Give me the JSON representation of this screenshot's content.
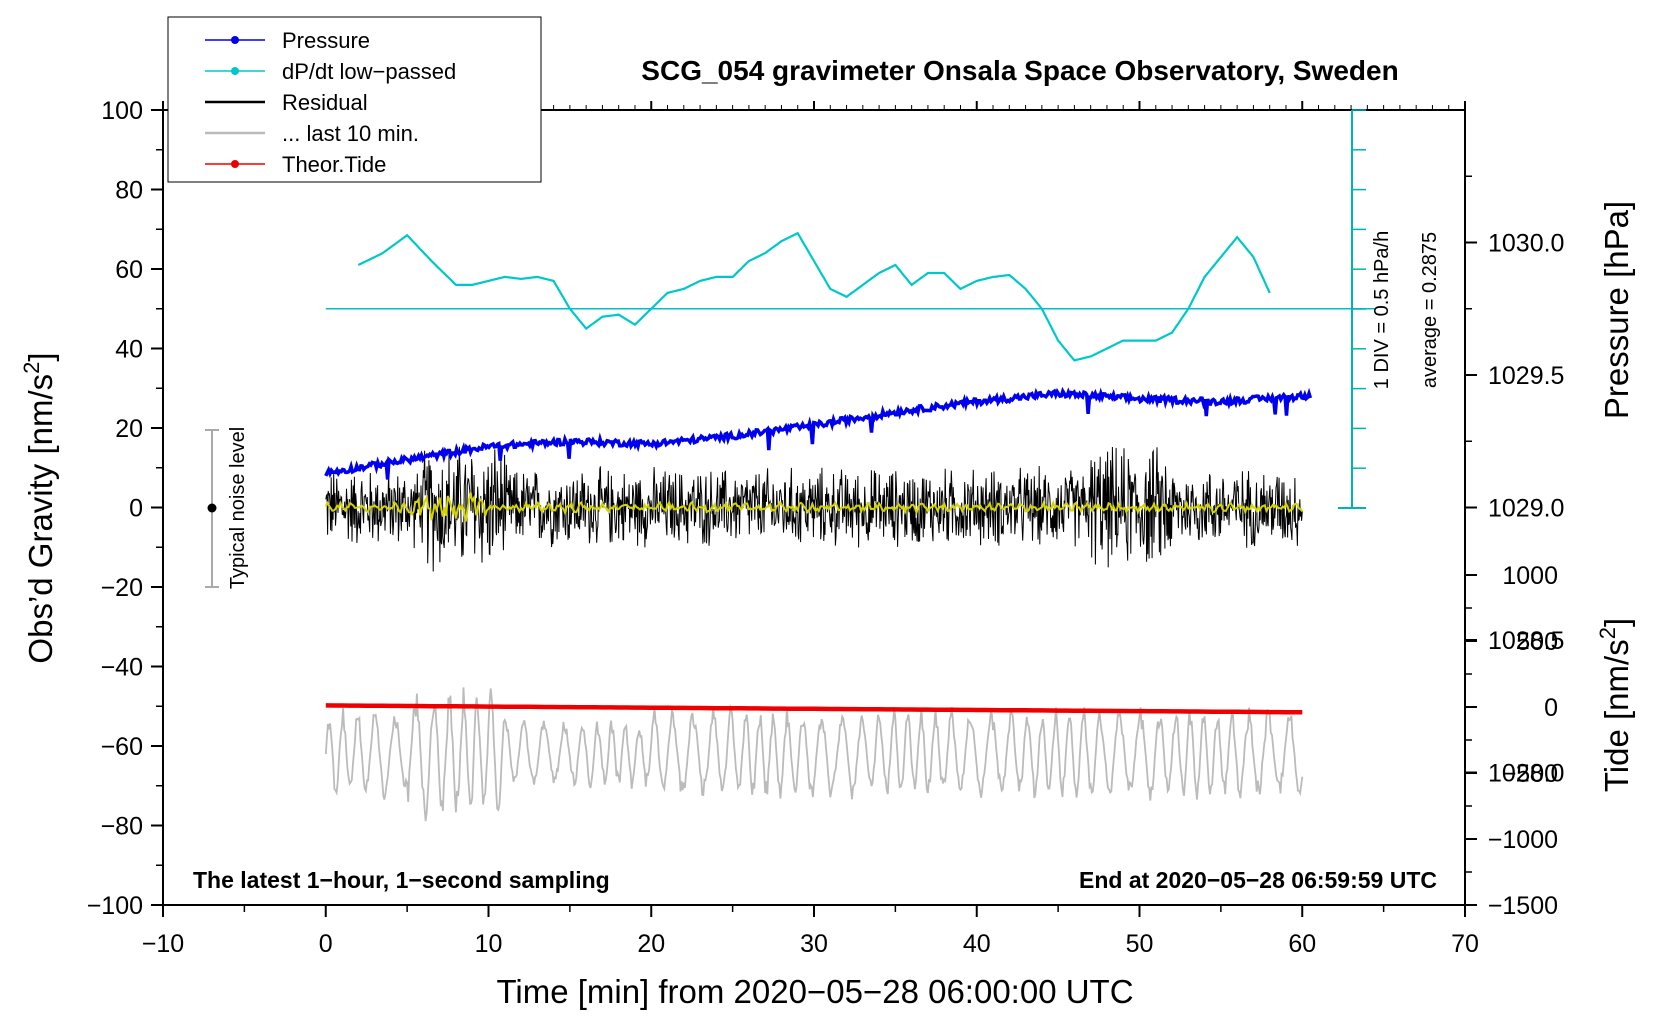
{
  "chart_data": {
    "type": "line",
    "title": "SCG_054 gravimeter Onsala Space Observatory, Sweden",
    "xlabel": "Time [min] from 2020−05−28 06:00:00 UTC",
    "ylabel": "Obs’d Gravity [nm/s²]",
    "ylabel_parts": {
      "main": "Obs’d Gravity [nm/s",
      "sup": "2",
      "end": "]"
    },
    "y2label": "Pressure [hPa]",
    "y3label_parts": {
      "main": "Tide [nm/s",
      "sup": "2",
      "end": "]"
    },
    "xlim": [
      -10,
      70
    ],
    "ylim": [
      -100,
      100
    ],
    "x_ticks": [
      "−10",
      "0",
      "10",
      "20",
      "30",
      "40",
      "50",
      "60",
      "70"
    ],
    "y_ticks": [
      "−100",
      "−80",
      "−60",
      "−40",
      "−20",
      "0",
      "20",
      "40",
      "60",
      "80",
      "100"
    ],
    "pressure_axis": {
      "ticks": [
        "1028.0",
        "1028.5",
        "1029.0",
        "1029.5",
        "1030.0"
      ],
      "range": [
        1027.5,
        1030.5
      ]
    },
    "tide_axis": {
      "ticks": [
        "−1500",
        "−1000",
        "−500",
        "0",
        "500",
        "1000"
      ],
      "range": [
        -1500,
        1000
      ]
    },
    "legend": [
      {
        "label": "Pressure",
        "color": "#0000ee",
        "marker": true
      },
      {
        "label": "dP/dt low−passed",
        "color": "#00c8c8",
        "marker": true
      },
      {
        "label": "Residual",
        "color": "#000000",
        "marker": false
      },
      {
        "label": "... last 10 min.",
        "color": "#bbbbbb",
        "marker": false
      },
      {
        "label": "Theor.Tide",
        "color": "#ee0000",
        "marker": true
      }
    ],
    "series": [
      {
        "name": "Pressure",
        "unit": "hPa",
        "color": "#0000ee",
        "x": [
          0,
          5,
          10,
          15,
          20,
          25,
          30,
          35,
          40,
          45,
          50,
          55,
          60
        ],
        "values": [
          1029.13,
          1029.18,
          1029.23,
          1029.25,
          1029.24,
          1029.27,
          1029.31,
          1029.36,
          1029.4,
          1029.43,
          1029.41,
          1029.4,
          1029.42
        ]
      },
      {
        "name": "dP/dt low−passed",
        "unit": "nm/s2 display",
        "color": "#00c8c8",
        "x": [
          2,
          3.5,
          5,
          6.5,
          8,
          9,
          10,
          11,
          12,
          13,
          14,
          15,
          16,
          17,
          18,
          19,
          20,
          21,
          22,
          23,
          24,
          25,
          26,
          27,
          28,
          29,
          30,
          31,
          32,
          33,
          34,
          35,
          36,
          37,
          38,
          39,
          40,
          41,
          42,
          43,
          44,
          45,
          46,
          47,
          48,
          49,
          50,
          51,
          52,
          53,
          54,
          55,
          56,
          57,
          58
        ],
        "values": [
          61,
          64,
          68.5,
          62,
          56,
          56,
          57,
          58,
          57.5,
          58,
          57,
          50,
          45,
          48,
          48.5,
          46,
          50,
          54,
          55,
          57,
          58,
          58,
          62,
          64,
          67,
          69,
          62,
          55,
          53,
          56,
          59,
          61,
          56,
          59,
          59,
          55,
          57,
          58,
          58.5,
          55,
          50,
          42,
          37,
          38,
          40,
          42,
          42,
          42,
          44,
          50,
          58,
          63,
          68,
          63,
          54
        ]
      },
      {
        "name": "Residual",
        "color": "#000000",
        "amplitude": 15
      },
      {
        "name": "... last 10 min.",
        "color": "#bbbbbb",
        "center": -62,
        "amplitude": 12
      },
      {
        "name": "Theor.Tide",
        "unit": "nm/s2",
        "color": "#ee0000",
        "x": [
          0,
          60
        ],
        "values": [
          12,
          -40
        ]
      }
    ],
    "dpdt_baseline": 50,
    "annotations": {
      "div": "1 DIV = 0.5 hPa/h",
      "average": "average = 0.2875",
      "noise": "Typical noise level",
      "latest": "The latest 1−hour, 1−second sampling",
      "end": "End at 2020−05−28 06:59:59 UTC"
    }
  }
}
